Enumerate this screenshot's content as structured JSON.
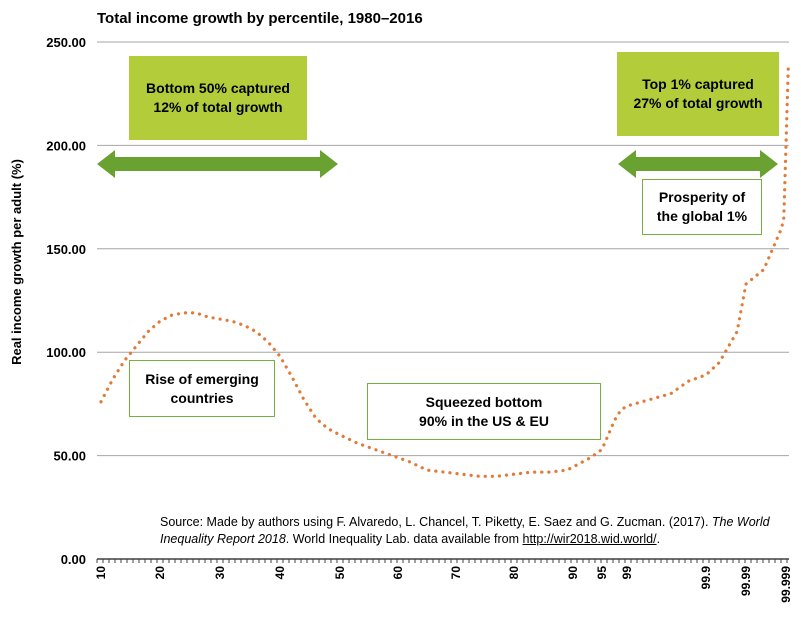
{
  "chart_data": {
    "type": "line",
    "title": "Total income growth by percentile, 1980–2016",
    "ylabel": "Real income growth per adult (%)",
    "xlabel": "",
    "ylim": [
      0,
      250
    ],
    "yticks": [
      "0.00",
      "50.00",
      "100.00",
      "150.00",
      "200.00",
      "250.00"
    ],
    "xticks": [
      "10",
      "20",
      "30",
      "40",
      "50",
      "60",
      "70",
      "80",
      "90",
      "95",
      "99",
      "99.9",
      "99.99",
      "99.999"
    ],
    "grid": true,
    "line_color": "#e07b39",
    "line_style": "dotted",
    "series": [
      {
        "values": [
          {
            "x": 10,
            "y": 76
          },
          {
            "x": 12,
            "y": 87
          },
          {
            "x": 14,
            "y": 96
          },
          {
            "x": 16,
            "y": 103
          },
          {
            "x": 18,
            "y": 110
          },
          {
            "x": 20,
            "y": 115
          },
          {
            "x": 22,
            "y": 118
          },
          {
            "x": 24,
            "y": 119
          },
          {
            "x": 26,
            "y": 119
          },
          {
            "x": 28,
            "y": 117
          },
          {
            "x": 30,
            "y": 116
          },
          {
            "x": 32,
            "y": 115
          },
          {
            "x": 34,
            "y": 113
          },
          {
            "x": 36,
            "y": 110
          },
          {
            "x": 38,
            "y": 105
          },
          {
            "x": 40,
            "y": 98
          },
          {
            "x": 42,
            "y": 88
          },
          {
            "x": 44,
            "y": 77
          },
          {
            "x": 46,
            "y": 68
          },
          {
            "x": 48,
            "y": 63
          },
          {
            "x": 50,
            "y": 60
          },
          {
            "x": 53,
            "y": 56
          },
          {
            "x": 56,
            "y": 53
          },
          {
            "x": 59,
            "y": 50
          },
          {
            "x": 62,
            "y": 47
          },
          {
            "x": 65,
            "y": 43
          },
          {
            "x": 68,
            "y": 42
          },
          {
            "x": 71,
            "y": 41
          },
          {
            "x": 74,
            "y": 40
          },
          {
            "x": 77,
            "y": 40
          },
          {
            "x": 80,
            "y": 41
          },
          {
            "x": 83,
            "y": 42
          },
          {
            "x": 86,
            "y": 42
          },
          {
            "x": 89,
            "y": 43
          },
          {
            "x": 91,
            "y": 46
          },
          {
            "x": 93,
            "y": 49
          },
          {
            "x": 95,
            "y": 53
          },
          {
            "x": 96,
            "y": 60
          },
          {
            "x": 97,
            "y": 67
          },
          {
            "x": 98,
            "y": 72
          },
          {
            "x": 99,
            "y": 74
          },
          {
            "x": 99.5,
            "y": 80
          },
          {
            "x": 99.7,
            "y": 86
          },
          {
            "x": 99.9,
            "y": 89
          },
          {
            "x": 99.93,
            "y": 95
          },
          {
            "x": 99.97,
            "y": 110
          },
          {
            "x": 99.99,
            "y": 133
          },
          {
            "x": 99.994,
            "y": 140
          },
          {
            "x": 99.996,
            "y": 150
          },
          {
            "x": 99.998,
            "y": 160
          },
          {
            "x": 99.9985,
            "y": 165
          },
          {
            "x": 99.999,
            "y": 200
          },
          {
            "x": 99.9995,
            "y": 237
          }
        ]
      }
    ],
    "annotations": {
      "bottom50": "Bottom 50% captured\n12% of total growth",
      "top1": "Top 1% captured\n27% of total growth",
      "prosperity": "Prosperity of\nthe global 1%",
      "emerging": "Rise of emerging\ncountries",
      "squeezed": "Squeezed bottom\n90% in the US & EU"
    },
    "source": {
      "prefix": "Source: Made by authors using F. Alvaredo, L. Chancel, T. Piketty, E. Saez and G. Zucman. (2017). ",
      "italic": "The World Inequality Report 2018",
      "middle": ". World Inequality Lab. data available from ",
      "link": "http://wir2018.wid.world/",
      "suffix": "."
    },
    "colors": {
      "green_box": "#b3cd3a",
      "arrow": "#6aa232",
      "outline": "#76b043",
      "grid": "#a6a6a6"
    }
  }
}
